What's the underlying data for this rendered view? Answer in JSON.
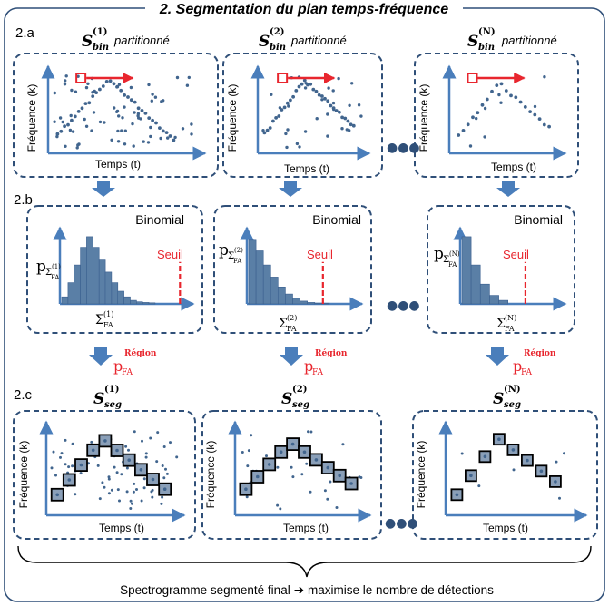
{
  "title": "2. Segmentation du plan temps-fréquence",
  "sections": {
    "a": "2.a",
    "b": "2.b",
    "c": "2.c"
  },
  "axes": {
    "frequency": "Fréquence (k)",
    "time": "Temps (t)"
  },
  "row_a": {
    "base": "S",
    "sub": "bin",
    "suffix": "partitionné",
    "columns": [
      {
        "sup": "(1)"
      },
      {
        "sup": "(2)"
      },
      {
        "sup": "(N)"
      }
    ]
  },
  "row_b": {
    "dist_label": "Binomial",
    "threshold_label": "Seuil",
    "p": "p",
    "sigma": "Σ",
    "fa": "FA",
    "columns": [
      {
        "sup": "(1)"
      },
      {
        "sup": "(2)"
      },
      {
        "sup": "(N)"
      }
    ],
    "histograms": [
      [
        0.1,
        0.3,
        0.55,
        0.8,
        0.95,
        0.8,
        0.62,
        0.45,
        0.3,
        0.18,
        0.1,
        0.05,
        0.03,
        0.02,
        0.015
      ],
      [
        0.9,
        0.75,
        0.55,
        0.38,
        0.24,
        0.14,
        0.08,
        0.04,
        0.02,
        0.012,
        0.01
      ],
      [
        0.95,
        0.55,
        0.28,
        0.12,
        0.05
      ]
    ]
  },
  "arrow_label": {
    "p": "p",
    "sub": "FA",
    "sup": "Région"
  },
  "row_c": {
    "base": "S",
    "sub": "seg",
    "columns": [
      {
        "sup": "(1)"
      },
      {
        "sup": "(2)"
      },
      {
        "sup": "(N)"
      }
    ]
  },
  "footer": {
    "text_left": "Spectrogramme segmenté final",
    "arrow": "➔",
    "text_right": "maximise le nombre de détections"
  },
  "colors": {
    "blue": "#4a7ebb",
    "dark_blue": "#3a5f8f",
    "dash": "#2f4f78",
    "red": "#e8262e",
    "dots": "#41658e",
    "cell": "#5a7fa6"
  },
  "ellipsis": "●●●"
}
